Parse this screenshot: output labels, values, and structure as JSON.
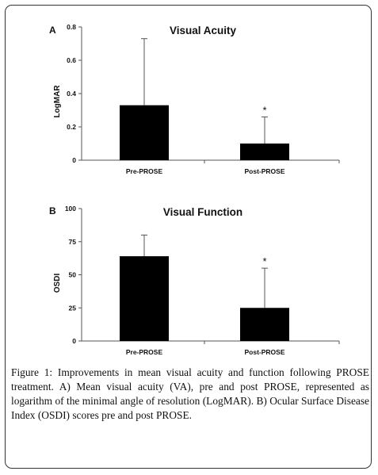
{
  "chart_data": [
    {
      "panel": "A",
      "type": "bar",
      "title": "Visual Acuity",
      "xlabel": "",
      "ylabel": "LogMAR",
      "ylim": [
        0,
        0.8
      ],
      "yticks": [
        0,
        0.2,
        0.4,
        0.6,
        0.8
      ],
      "ytick_labels": [
        "0",
        "0.2",
        "0.4",
        "0.6",
        "0.8"
      ],
      "categories": [
        "Pre-PROSE",
        "Post-PROSE"
      ],
      "values": [
        0.33,
        0.1
      ],
      "error_upper": [
        0.73,
        0.26
      ],
      "significance": [
        "",
        "*"
      ]
    },
    {
      "panel": "B",
      "type": "bar",
      "title": "Visual Function",
      "xlabel": "",
      "ylabel": "OSDI",
      "ylim": [
        0,
        100
      ],
      "yticks": [
        0,
        25,
        50,
        75,
        100
      ],
      "ytick_labels": [
        "0",
        "25",
        "50",
        "75",
        "100"
      ],
      "categories": [
        "Pre-PROSE",
        "Post-PROSE"
      ],
      "values": [
        64,
        25
      ],
      "error_upper": [
        80,
        55
      ],
      "significance": [
        "",
        "*"
      ]
    }
  ],
  "caption": {
    "label": "Figure 1:",
    "text": " Improvements in mean visual acuity and function following PROSE treatment. A) Mean visual acuity (VA), pre and post PROSE, represented as logarithm of the minimal angle of resolution (LogMAR). B) Ocular Surface Disease Index (OSDI) scores pre and post PROSE."
  },
  "colors": {
    "bar": "#000000",
    "axis": "#555555",
    "text": "#111111"
  }
}
